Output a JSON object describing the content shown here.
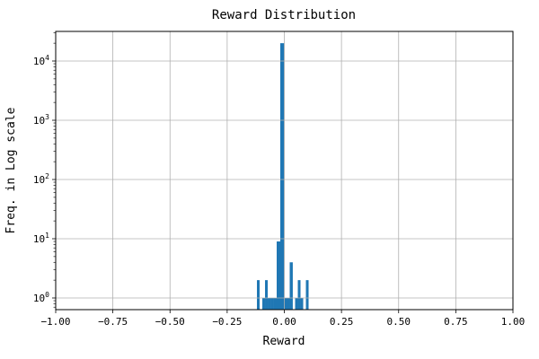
{
  "chart_data": {
    "type": "bar",
    "subtype": "histogram-log-y",
    "title": "Reward Distribution",
    "xlabel": "Reward",
    "ylabel": "Freq. in Log scale",
    "xlim": [
      -1.0,
      1.0
    ],
    "ylim": [
      0.635,
      31623
    ],
    "x_ticks": [
      -1.0,
      -0.75,
      -0.5,
      -0.25,
      0.0,
      0.25,
      0.5,
      0.75,
      1.0
    ],
    "x_tick_labels": [
      "−1.00",
      "−0.75",
      "−0.50",
      "−0.25",
      "0.00",
      "0.25",
      "0.50",
      "0.75",
      "1.00"
    ],
    "y_tick_exponents": [
      0,
      1,
      2,
      3,
      4
    ],
    "y_scale": "log",
    "grid": true,
    "legend": "none",
    "bar_color": "#1f77b4",
    "grid_color": "#b0b0b0",
    "spine_color": "#000000",
    "bars": [
      {
        "x0": -0.1198,
        "x1": -0.108,
        "count": 2
      },
      {
        "x0": -0.0962,
        "x1": -0.0844,
        "count": 1
      },
      {
        "x0": -0.0844,
        "x1": -0.0726,
        "count": 2
      },
      {
        "x0": -0.0726,
        "x1": -0.0608,
        "count": 1
      },
      {
        "x0": -0.0608,
        "x1": -0.049,
        "count": 1
      },
      {
        "x0": -0.049,
        "x1": -0.0334,
        "count": 1
      },
      {
        "x0": -0.0334,
        "x1": -0.0177,
        "count": 9
      },
      {
        "x0": -0.0177,
        "x1": 0.0,
        "count": 20000
      },
      {
        "x0": 0.0,
        "x1": 0.0118,
        "count": 1
      },
      {
        "x0": 0.0118,
        "x1": 0.0236,
        "count": 1
      },
      {
        "x0": 0.0236,
        "x1": 0.037,
        "count": 4
      },
      {
        "x0": 0.0472,
        "x1": 0.059,
        "count": 1
      },
      {
        "x0": 0.059,
        "x1": 0.0708,
        "count": 2
      },
      {
        "x0": 0.0708,
        "x1": 0.0826,
        "count": 1
      },
      {
        "x0": 0.0944,
        "x1": 0.1062,
        "count": 2
      }
    ]
  }
}
